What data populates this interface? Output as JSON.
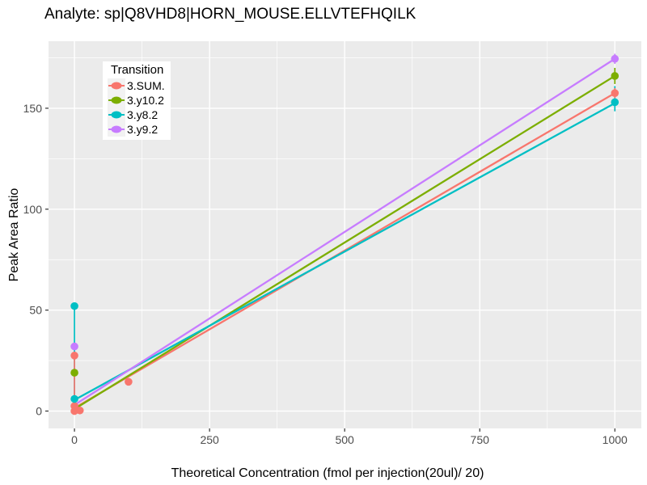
{
  "title": "Analyte: sp|Q8VHD8|HORN_MOUSE.ELLVTEFHQILK",
  "legend": {
    "title": "Transition",
    "entries": [
      {
        "label": "3.SUM.",
        "color": "#F8766D"
      },
      {
        "label": "3.y10.2",
        "color": "#7CAE00"
      },
      {
        "label": "3.y8.2",
        "color": "#00BFC4"
      },
      {
        "label": "3.y9.2",
        "color": "#C77CFF"
      }
    ]
  },
  "colors": {
    "panel_bg": "#EBEBEB",
    "gridline": "#FFFFFF",
    "tick_text": "#4D4D4D",
    "tick_mark": "#333333",
    "title_text": "#000000",
    "legend_key_bg": "#F2F2F2"
  },
  "chart_data": {
    "type": "scatter",
    "title": "Analyte: sp|Q8VHD8|HORN_MOUSE.ELLVTEFHQILK",
    "xlabel": "Theoretical Concentration (fmol per injection(20ul)/ 20)",
    "ylabel": "Peak Area Ratio",
    "xlim": [
      -48,
      1049
    ],
    "ylim": [
      -8.6,
      183.2
    ],
    "x_ticks": [
      0,
      250,
      500,
      750,
      1000
    ],
    "y_ticks": [
      0,
      50,
      100,
      150
    ],
    "x_minor_gridlines": [
      125,
      375,
      625,
      875
    ],
    "y_minor_gridlines": [
      25,
      75,
      125,
      175
    ],
    "grid": true,
    "legend_position": "top-left-inset",
    "series": [
      {
        "name": "3.SUM.",
        "color": "#F8766D",
        "trend_line": {
          "x": [
            0,
            1000
          ],
          "y": [
            1.5,
            157.5
          ]
        },
        "points": [
          [
            0,
            27.5
          ],
          [
            0,
            2.5
          ],
          [
            0,
            0
          ],
          [
            10,
            0.3
          ],
          [
            100,
            14.5
          ],
          [
            1000,
            157.5
          ]
        ],
        "error_bars": [
          {
            "x": 0,
            "y_min": 2,
            "y_max": 28
          },
          {
            "x": 1000,
            "y_min": 155,
            "y_max": 160
          }
        ]
      },
      {
        "name": "3.y10.2",
        "color": "#7CAE00",
        "trend_line": {
          "x": [
            0,
            1000
          ],
          "y": [
            1,
            166
          ]
        },
        "points": [
          [
            0,
            19
          ],
          [
            1000,
            166
          ]
        ],
        "error_bars": [
          {
            "x": 1000,
            "y_min": 162,
            "y_max": 170
          }
        ]
      },
      {
        "name": "3.y8.2",
        "color": "#00BFC4",
        "trend_line": {
          "x": [
            0,
            1000
          ],
          "y": [
            5.5,
            152.5
          ]
        },
        "points": [
          [
            0,
            52
          ],
          [
            0,
            6
          ],
          [
            1000,
            153
          ]
        ],
        "error_bars": [
          {
            "x": 0,
            "y_min": 6,
            "y_max": 52
          },
          {
            "x": 1000,
            "y_min": 148.5,
            "y_max": 161
          }
        ]
      },
      {
        "name": "3.y9.2",
        "color": "#C77CFF",
        "trend_line": {
          "x": [
            0,
            1000
          ],
          "y": [
            3,
            174.5
          ]
        },
        "points": [
          [
            0,
            32
          ],
          [
            1000,
            174.5
          ]
        ],
        "error_bars": [
          {
            "x": 1000,
            "y_min": 172,
            "y_max": 177
          }
        ]
      }
    ]
  }
}
